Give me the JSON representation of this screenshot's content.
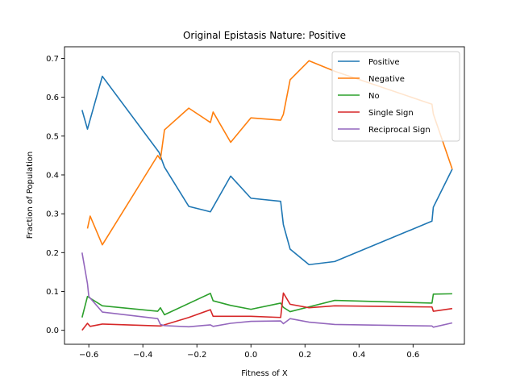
{
  "chart_data": {
    "type": "line",
    "title": "Original Epistasis Nature: Positive",
    "xlabel": "Fitness of X",
    "ylabel": "Fraction of Population",
    "xlim": [
      -0.69,
      0.79
    ],
    "ylim": [
      -0.036,
      0.73
    ],
    "xticks": [
      -0.6,
      -0.4,
      -0.2,
      0.0,
      0.2,
      0.4,
      0.6
    ],
    "xtick_labels": [
      "−0.6",
      "−0.4",
      "−0.2",
      "0.0",
      "0.2",
      "0.4",
      "0.6"
    ],
    "yticks": [
      0.0,
      0.1,
      0.2,
      0.3,
      0.4,
      0.5,
      0.6,
      0.7
    ],
    "ytick_labels": [
      "0.0",
      "0.1",
      "0.2",
      "0.3",
      "0.4",
      "0.5",
      "0.6",
      "0.7"
    ],
    "legend_position": "upper-right",
    "series": [
      {
        "name": "Positive",
        "color": "#1f77b4",
        "points": [
          [
            -0.625,
            0.567
          ],
          [
            -0.605,
            0.518
          ],
          [
            -0.55,
            0.654
          ],
          [
            -0.34,
            0.458
          ],
          [
            -0.32,
            0.42
          ],
          [
            -0.23,
            0.319
          ],
          [
            -0.15,
            0.305
          ],
          [
            -0.075,
            0.397
          ],
          [
            0.0,
            0.34
          ],
          [
            0.11,
            0.332
          ],
          [
            0.12,
            0.272
          ],
          [
            0.145,
            0.209
          ],
          [
            0.215,
            0.169
          ],
          [
            0.31,
            0.177
          ],
          [
            0.67,
            0.281
          ],
          [
            0.675,
            0.317
          ],
          [
            0.745,
            0.415
          ]
        ]
      },
      {
        "name": "Negative",
        "color": "#ff7f0e",
        "points": [
          [
            -0.605,
            0.262
          ],
          [
            -0.595,
            0.294
          ],
          [
            -0.55,
            0.22
          ],
          [
            -0.345,
            0.45
          ],
          [
            -0.335,
            0.44
          ],
          [
            -0.32,
            0.516
          ],
          [
            -0.23,
            0.572
          ],
          [
            -0.15,
            0.535
          ],
          [
            -0.14,
            0.562
          ],
          [
            -0.075,
            0.484
          ],
          [
            0.0,
            0.547
          ],
          [
            0.11,
            0.541
          ],
          [
            0.12,
            0.556
          ],
          [
            0.145,
            0.645
          ],
          [
            0.215,
            0.694
          ],
          [
            0.31,
            0.667
          ],
          [
            0.67,
            0.582
          ],
          [
            0.675,
            0.557
          ],
          [
            0.745,
            0.415
          ]
        ]
      },
      {
        "name": "No",
        "color": "#2ca02c",
        "points": [
          [
            -0.625,
            0.033
          ],
          [
            -0.605,
            0.087
          ],
          [
            -0.55,
            0.063
          ],
          [
            -0.345,
            0.049
          ],
          [
            -0.335,
            0.058
          ],
          [
            -0.32,
            0.04
          ],
          [
            -0.15,
            0.095
          ],
          [
            -0.14,
            0.076
          ],
          [
            -0.075,
            0.064
          ],
          [
            0.0,
            0.054
          ],
          [
            0.11,
            0.07
          ],
          [
            0.12,
            0.059
          ],
          [
            0.145,
            0.048
          ],
          [
            0.31,
            0.077
          ],
          [
            0.67,
            0.07
          ],
          [
            0.675,
            0.093
          ],
          [
            0.745,
            0.094
          ]
        ]
      },
      {
        "name": "Single Sign",
        "color": "#d62728",
        "points": [
          [
            -0.625,
            0.0
          ],
          [
            -0.605,
            0.018
          ],
          [
            -0.595,
            0.01
          ],
          [
            -0.55,
            0.016
          ],
          [
            -0.335,
            0.011
          ],
          [
            -0.32,
            0.014
          ],
          [
            -0.23,
            0.033
          ],
          [
            -0.15,
            0.053
          ],
          [
            -0.14,
            0.036
          ],
          [
            0.0,
            0.036
          ],
          [
            0.11,
            0.033
          ],
          [
            0.12,
            0.096
          ],
          [
            0.145,
            0.067
          ],
          [
            0.215,
            0.058
          ],
          [
            0.31,
            0.063
          ],
          [
            0.67,
            0.06
          ],
          [
            0.675,
            0.049
          ],
          [
            0.745,
            0.056
          ]
        ]
      },
      {
        "name": "Reciprocal Sign",
        "color": "#9467bd",
        "points": [
          [
            -0.625,
            0.2
          ],
          [
            -0.605,
            0.12
          ],
          [
            -0.6,
            0.087
          ],
          [
            -0.55,
            0.047
          ],
          [
            -0.345,
            0.03
          ],
          [
            -0.335,
            0.015
          ],
          [
            -0.32,
            0.012
          ],
          [
            -0.23,
            0.009
          ],
          [
            -0.15,
            0.014
          ],
          [
            -0.14,
            0.01
          ],
          [
            -0.075,
            0.018
          ],
          [
            0.0,
            0.023
          ],
          [
            0.11,
            0.024
          ],
          [
            0.12,
            0.017
          ],
          [
            0.145,
            0.03
          ],
          [
            0.215,
            0.021
          ],
          [
            0.31,
            0.015
          ],
          [
            0.67,
            0.011
          ],
          [
            0.675,
            0.008
          ],
          [
            0.745,
            0.019
          ]
        ]
      }
    ]
  }
}
